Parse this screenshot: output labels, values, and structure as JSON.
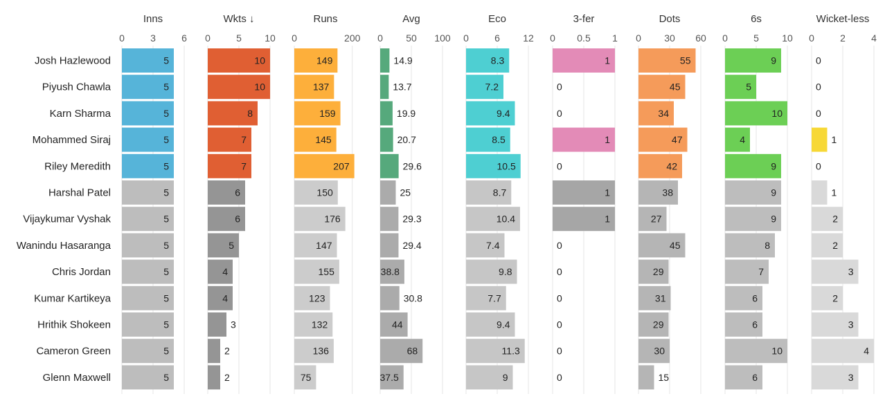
{
  "chart_data": {
    "type": "table",
    "title": "",
    "sort_indicator": "↓",
    "rows": [
      "Josh Hazlewood",
      "Piyush Chawla",
      "Karn Sharma",
      "Mohammed Siraj",
      "Riley Meredith",
      "Harshal Patel",
      "Vijaykumar Vyshak",
      "Wanindu Hasaranga",
      "Chris Jordan",
      "Kumar Kartikeya",
      "Hrithik Shokeen",
      "Cameron Green",
      "Glenn Maxwell"
    ],
    "columns": [
      {
        "key": "inns",
        "label": "Inns",
        "xlim": [
          0,
          6
        ],
        "ticks": [
          0,
          3,
          6
        ],
        "tick_labels": [
          "0",
          "3",
          "6"
        ],
        "color": "#56b4d9",
        "highlight_rows": [
          0,
          1,
          2,
          3,
          4
        ],
        "values": [
          5,
          5,
          5,
          5,
          5,
          5,
          5,
          5,
          5,
          5,
          5,
          5,
          5
        ],
        "labels": [
          "5",
          "5",
          "5",
          "5",
          "5",
          "5",
          "5",
          "5",
          "5",
          "5",
          "5",
          "5",
          "5"
        ]
      },
      {
        "key": "wkts",
        "label": "Wkts",
        "sorted": true,
        "xlim": [
          0,
          10
        ],
        "ticks": [
          0,
          5,
          10
        ],
        "tick_labels": [
          "0",
          "5",
          "10"
        ],
        "color": "#e05f33",
        "highlight_rows": [
          0,
          1,
          2,
          3,
          4
        ],
        "values": [
          10,
          10,
          8,
          7,
          7,
          6,
          6,
          5,
          4,
          4,
          3,
          2,
          2
        ],
        "labels": [
          "10",
          "10",
          "8",
          "7",
          "7",
          "6",
          "6",
          "5",
          "4",
          "4",
          "3",
          "2",
          "2"
        ]
      },
      {
        "key": "runs",
        "label": "Runs",
        "xlim": [
          0,
          215
        ],
        "ticks": [
          0,
          200
        ],
        "tick_labels": [
          "0",
          "200"
        ],
        "color": "#fdaf3b",
        "highlight_rows": [
          0,
          1,
          2,
          3,
          4
        ],
        "values": [
          149,
          137,
          159,
          145,
          207,
          150,
          176,
          147,
          155,
          123,
          132,
          136,
          75
        ],
        "labels": [
          "149",
          "137",
          "159",
          "145",
          "207",
          "150",
          "176",
          "147",
          "155",
          "123",
          "132",
          "136",
          "75"
        ]
      },
      {
        "key": "avg",
        "label": "Avg",
        "xlim": [
          0,
          100
        ],
        "ticks": [
          0,
          50,
          100
        ],
        "tick_labels": [
          "0",
          "50",
          "100"
        ],
        "color": "#56a97c",
        "highlight_rows": [
          0,
          1,
          2,
          3,
          4
        ],
        "values": [
          14.9,
          13.7,
          19.9,
          20.7,
          29.6,
          25,
          29.3,
          29.4,
          38.8,
          30.8,
          44,
          68,
          37.5
        ],
        "labels": [
          "14.9",
          "13.7",
          "19.9",
          "20.7",
          "29.6",
          "25",
          "29.3",
          "29.4",
          "38.8",
          "30.8",
          "44",
          "68",
          "37.5"
        ]
      },
      {
        "key": "eco",
        "label": "Eco",
        "xlim": [
          0,
          12
        ],
        "ticks": [
          0,
          6,
          12
        ],
        "tick_labels": [
          "0",
          "6",
          "12"
        ],
        "color": "#4ecfd2",
        "highlight_rows": [
          0,
          1,
          2,
          3,
          4
        ],
        "values": [
          8.3,
          7.2,
          9.4,
          8.5,
          10.5,
          8.7,
          10.4,
          7.4,
          9.8,
          7.7,
          9.4,
          11.3,
          9
        ],
        "labels": [
          "8.3",
          "7.2",
          "9.4",
          "8.5",
          "10.5",
          "8.7",
          "10.4",
          "7.4",
          "9.8",
          "7.7",
          "9.4",
          "11.3",
          "9"
        ]
      },
      {
        "key": "threefer",
        "label": "3-fer",
        "xlim": [
          0,
          1
        ],
        "ticks": [
          0,
          0.5,
          1
        ],
        "tick_labels": [
          "0",
          "0.5",
          "1"
        ],
        "color": "#e38bb7",
        "highlight_rows": [
          0,
          3
        ],
        "values": [
          1,
          0,
          0,
          1,
          0,
          1,
          1,
          0,
          0,
          0,
          0,
          0,
          0
        ],
        "labels": [
          "1",
          "0",
          "0",
          "1",
          "0",
          "1",
          "1",
          "0",
          "0",
          "0",
          "0",
          "0",
          "0"
        ]
      },
      {
        "key": "dots",
        "label": "Dots",
        "xlim": [
          0,
          60
        ],
        "ticks": [
          0,
          30,
          60
        ],
        "tick_labels": [
          "0",
          "30",
          "60"
        ],
        "color": "#f59b5a",
        "highlight_rows": [
          0,
          1,
          2,
          3,
          4
        ],
        "values": [
          55,
          45,
          34,
          47,
          42,
          38,
          27,
          45,
          29,
          31,
          29,
          30,
          15
        ],
        "labels": [
          "55",
          "45",
          "34",
          "47",
          "42",
          "38",
          "27",
          "45",
          "29",
          "31",
          "29",
          "30",
          "15"
        ]
      },
      {
        "key": "sixes",
        "label": "6s",
        "xlim": [
          0,
          10
        ],
        "ticks": [
          0,
          5,
          10
        ],
        "tick_labels": [
          "0",
          "5",
          "10"
        ],
        "color": "#6ccf55",
        "highlight_rows": [
          0,
          1,
          2,
          3,
          4
        ],
        "values": [
          9,
          5,
          10,
          4,
          9,
          9,
          9,
          8,
          7,
          6,
          6,
          10,
          6
        ],
        "labels": [
          "9",
          "5",
          "10",
          "4",
          "9",
          "9",
          "9",
          "8",
          "7",
          "6",
          "6",
          "10",
          "6"
        ]
      },
      {
        "key": "wicketless",
        "label": "Wicket-less",
        "xlim": [
          0,
          4
        ],
        "ticks": [
          0,
          2,
          4
        ],
        "tick_labels": [
          "0",
          "2",
          "4"
        ],
        "color": "#f7d836",
        "highlight_rows": [
          3
        ],
        "values": [
          0,
          0,
          0,
          1,
          0,
          1,
          2,
          2,
          3,
          2,
          3,
          4,
          3
        ],
        "labels": [
          "0",
          "0",
          "0",
          "1",
          "0",
          "1",
          "2",
          "2",
          "3",
          "2",
          "3",
          "4",
          "3"
        ]
      }
    ],
    "grey_shades": {
      "inns": "#bdbdbd",
      "wkts": "#959595",
      "runs": "#cccccc",
      "avg": "#ababab",
      "eco": "#c6c6c6",
      "threefer": "#a6a6a6",
      "dots": "#b5b5b5",
      "sixes": "#bdbdbd",
      "wicketless": "#d9d9d9"
    }
  }
}
